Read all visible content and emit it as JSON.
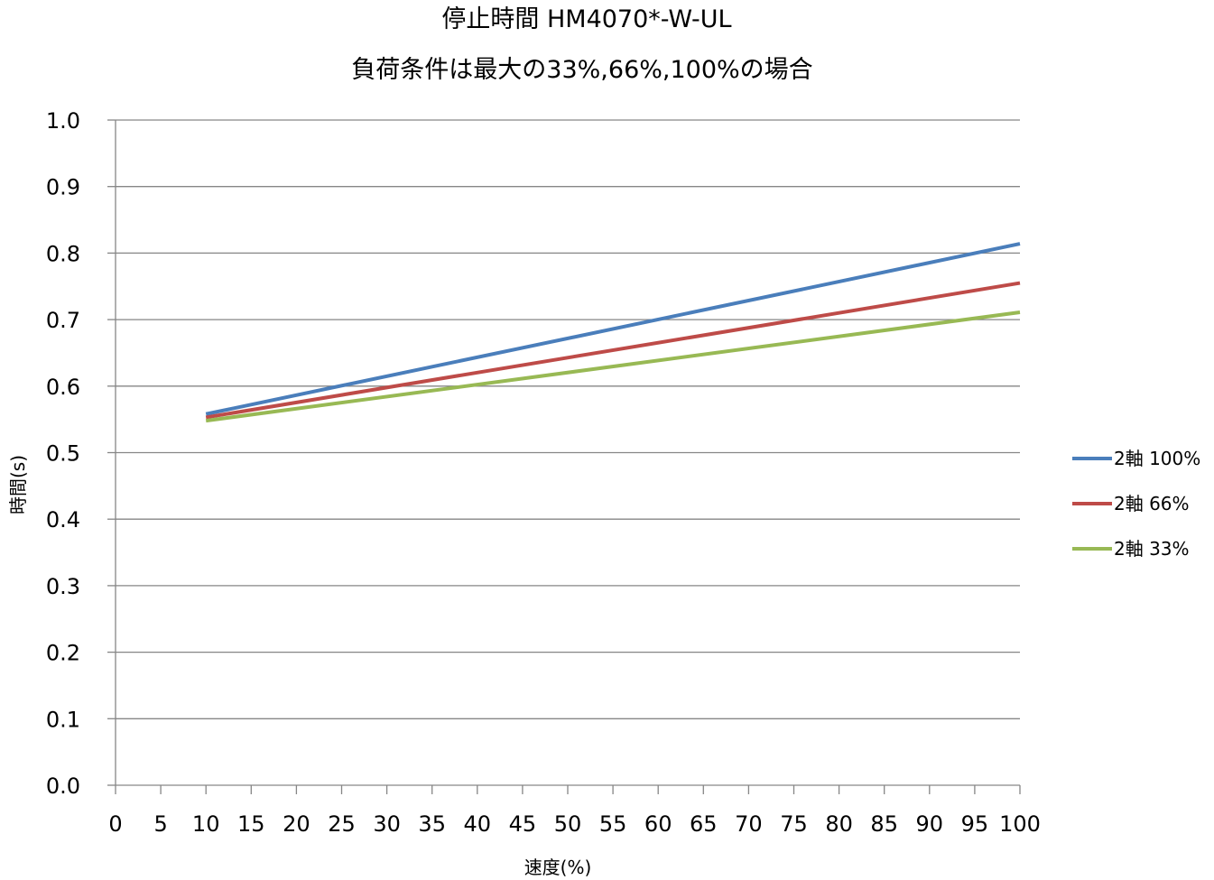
{
  "chart_data": {
    "type": "line",
    "title": "停止時間 HM4070*-W-UL",
    "subtitle": "負荷条件は最大の33%,66%,100%の場合",
    "xlabel": "速度(%)",
    "ylabel": "時間(s)",
    "xlim": [
      0,
      100
    ],
    "ylim": [
      0,
      1.0
    ],
    "x_ticks": [
      "0",
      "5",
      "10",
      "15",
      "20",
      "25",
      "30",
      "35",
      "40",
      "45",
      "50",
      "55",
      "60",
      "65",
      "70",
      "75",
      "80",
      "85",
      "90",
      "95",
      "100"
    ],
    "y_ticks": [
      "0.0",
      "0.1",
      "0.2",
      "0.3",
      "0.4",
      "0.5",
      "0.6",
      "0.7",
      "0.8",
      "0.9",
      "1.0"
    ],
    "grid": "horizontal",
    "legend_position": "right",
    "series": [
      {
        "name": "2軸 100%",
        "color": "#4a7ebb",
        "x": [
          10,
          100
        ],
        "y": [
          0.558,
          0.814
        ]
      },
      {
        "name": "2軸 66%",
        "color": "#be4b48",
        "x": [
          10,
          100
        ],
        "y": [
          0.553,
          0.755
        ]
      },
      {
        "name": "2軸 33%",
        "color": "#98b954",
        "x": [
          10,
          100
        ],
        "y": [
          0.548,
          0.711
        ]
      }
    ]
  }
}
